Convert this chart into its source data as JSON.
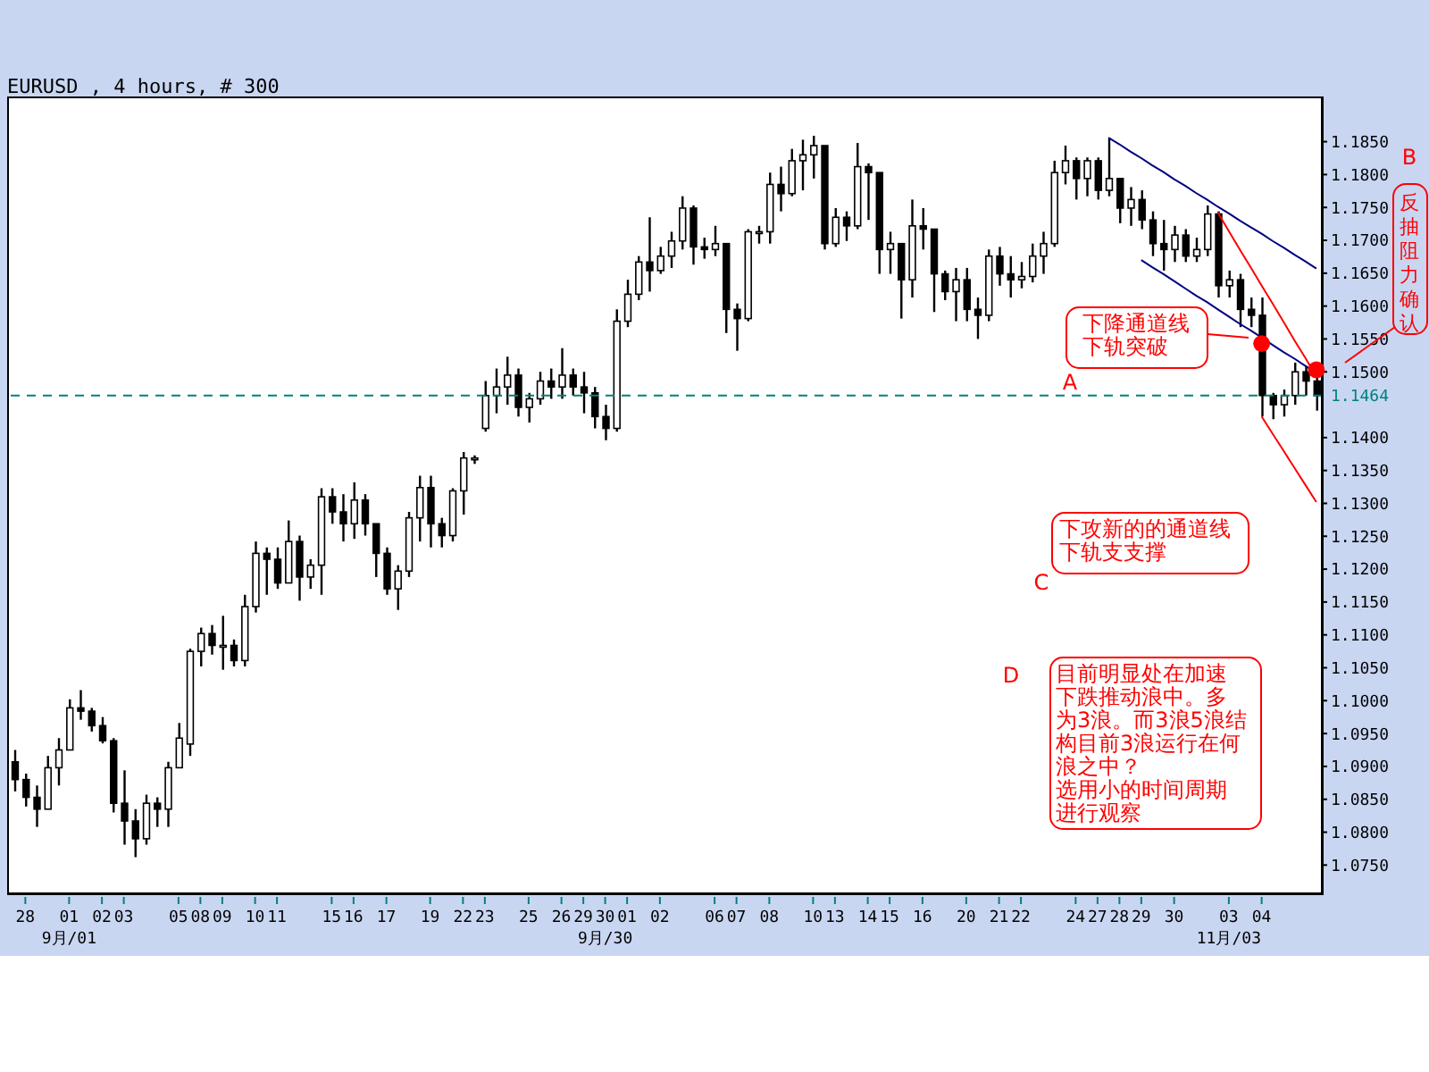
{
  "chart_data": {
    "type": "candlestick",
    "title": "EURUSD , 4 hours, # 300",
    "color": "#000000",
    "categories": [
      null,
      "28",
      null,
      null,
      null,
      "01\n9月/01",
      null,
      null,
      "02",
      null,
      "03",
      null,
      null,
      null,
      null,
      "05",
      null,
      "08",
      null,
      "09",
      null,
      null,
      "10",
      null,
      "11",
      null,
      null,
      null,
      null,
      "15",
      null,
      "16",
      null,
      null,
      "17",
      null,
      null,
      null,
      "19",
      null,
      null,
      "22",
      null,
      "23",
      null,
      null,
      null,
      "25",
      null,
      null,
      "26",
      null,
      "29",
      null,
      "30\n9月/30",
      null,
      "01",
      null,
      null,
      "02",
      null,
      null,
      null,
      null,
      "06",
      null,
      "07",
      null,
      null,
      "08",
      null,
      null,
      null,
      "10",
      null,
      "13",
      null,
      null,
      "14",
      null,
      "15",
      null,
      null,
      "16",
      null,
      null,
      null,
      "20",
      null,
      null,
      "21",
      null,
      "22",
      null,
      null,
      null,
      null,
      "24",
      null,
      "27",
      null,
      "28",
      null,
      "29",
      null,
      null,
      "30",
      null,
      null,
      null,
      null,
      "03\n11月/03",
      null,
      null,
      "04",
      null,
      null,
      null,
      null,
      null
    ],
    "ohlc": [
      [
        1.0907,
        1.0925,
        1.0862,
        1.088
      ],
      [
        1.088,
        1.0889,
        1.0839,
        1.0853
      ],
      [
        1.0853,
        1.0871,
        1.0808,
        1.0835
      ],
      [
        1.0835,
        1.0916,
        1.0835,
        1.0898
      ],
      [
        1.0898,
        1.0943,
        1.0871,
        1.0925
      ],
      [
        1.0925,
        1.1002,
        1.0925,
        1.0989
      ],
      [
        1.0989,
        1.1016,
        1.0971,
        1.0984
      ],
      [
        1.0984,
        1.0989,
        1.0953,
        1.0962
      ],
      [
        1.0962,
        1.0975,
        1.0935,
        1.0939
      ],
      [
        1.0939,
        1.0943,
        1.083,
        1.0844
      ],
      [
        1.0844,
        1.0894,
        1.0781,
        1.0817
      ],
      [
        1.0817,
        1.0835,
        1.0762,
        1.079
      ],
      [
        1.079,
        1.0857,
        1.0781,
        1.0844
      ],
      [
        1.0844,
        1.0853,
        1.0808,
        1.0835
      ],
      [
        1.0835,
        1.0907,
        1.0808,
        1.0898
      ],
      [
        1.0898,
        1.0966,
        1.0898,
        1.0943
      ],
      [
        1.0934,
        1.1079,
        1.0916,
        1.1075
      ],
      [
        1.1075,
        1.1111,
        1.1052,
        1.1102
      ],
      [
        1.1102,
        1.1115,
        1.107,
        1.1084
      ],
      [
        1.1084,
        1.1129,
        1.1047,
        1.1084
      ],
      [
        1.1084,
        1.1093,
        1.1052,
        1.1061
      ],
      [
        1.1061,
        1.1161,
        1.1052,
        1.1143
      ],
      [
        1.1143,
        1.1242,
        1.1134,
        1.1224
      ],
      [
        1.1224,
        1.1233,
        1.1161,
        1.1215
      ],
      [
        1.1215,
        1.1233,
        1.117,
        1.1179
      ],
      [
        1.1179,
        1.1274,
        1.1179,
        1.1242
      ],
      [
        1.1242,
        1.1251,
        1.1152,
        1.1188
      ],
      [
        1.1188,
        1.1215,
        1.117,
        1.1206
      ],
      [
        1.1206,
        1.1323,
        1.1161,
        1.131
      ],
      [
        1.131,
        1.1323,
        1.1269,
        1.1287
      ],
      [
        1.1287,
        1.1314,
        1.1242,
        1.1269
      ],
      [
        1.1269,
        1.1332,
        1.1246,
        1.1305
      ],
      [
        1.1305,
        1.1314,
        1.1251,
        1.1269
      ],
      [
        1.1269,
        1.1269,
        1.1188,
        1.1224
      ],
      [
        1.1224,
        1.1233,
        1.1161,
        1.117
      ],
      [
        1.117,
        1.1206,
        1.1138,
        1.1197
      ],
      [
        1.1197,
        1.1287,
        1.1188,
        1.1278
      ],
      [
        1.1278,
        1.1342,
        1.1242,
        1.1324
      ],
      [
        1.1324,
        1.1342,
        1.1233,
        1.1269
      ],
      [
        1.1269,
        1.1278,
        1.1233,
        1.1251
      ],
      [
        1.1251,
        1.1323,
        1.1242,
        1.1319
      ],
      [
        1.1319,
        1.1378,
        1.1283,
        1.1369
      ],
      [
        1.1369,
        1.1373,
        1.136,
        1.1369
      ],
      [
        1.1414,
        1.1486,
        1.1409,
        1.1464
      ],
      [
        1.1464,
        1.1505,
        1.1437,
        1.1477
      ],
      [
        1.1477,
        1.1523,
        1.145,
        1.1495
      ],
      [
        1.1495,
        1.1505,
        1.1432,
        1.1446
      ],
      [
        1.1446,
        1.1468,
        1.1423,
        1.1459
      ],
      [
        1.1459,
        1.15,
        1.145,
        1.1486
      ],
      [
        1.1486,
        1.1505,
        1.1459,
        1.1477
      ],
      [
        1.1477,
        1.1536,
        1.1459,
        1.1495
      ],
      [
        1.1495,
        1.1505,
        1.1464,
        1.1477
      ],
      [
        1.1477,
        1.15,
        1.1437,
        1.1468
      ],
      [
        1.1468,
        1.1477,
        1.1414,
        1.1432
      ],
      [
        1.1432,
        1.145,
        1.1396,
        1.1414
      ],
      [
        1.1414,
        1.1595,
        1.1409,
        1.1577
      ],
      [
        1.1577,
        1.164,
        1.1568,
        1.1618
      ],
      [
        1.1618,
        1.1676,
        1.1609,
        1.1667
      ],
      [
        1.1667,
        1.1735,
        1.1622,
        1.1654
      ],
      [
        1.1654,
        1.169,
        1.1649,
        1.1676
      ],
      [
        1.1676,
        1.1713,
        1.1658,
        1.1699
      ],
      [
        1.1699,
        1.1767,
        1.1686,
        1.1749
      ],
      [
        1.1749,
        1.1753,
        1.1663,
        1.169
      ],
      [
        1.169,
        1.1704,
        1.1672,
        1.1686
      ],
      [
        1.1686,
        1.1722,
        1.1676,
        1.1695
      ],
      [
        1.1695,
        1.1695,
        1.1559,
        1.1595
      ],
      [
        1.1595,
        1.1604,
        1.1532,
        1.1581
      ],
      [
        1.1581,
        1.1717,
        1.1577,
        1.1713
      ],
      [
        1.1713,
        1.1722,
        1.1695,
        1.1713
      ],
      [
        1.1713,
        1.1803,
        1.1695,
        1.1785
      ],
      [
        1.1785,
        1.1812,
        1.1744,
        1.1771
      ],
      [
        1.1771,
        1.1839,
        1.1767,
        1.1821
      ],
      [
        1.1821,
        1.1853,
        1.1776,
        1.183
      ],
      [
        1.183,
        1.1859,
        1.1794,
        1.1844
      ],
      [
        1.1844,
        1.1844,
        1.1686,
        1.1695
      ],
      [
        1.1695,
        1.1749,
        1.169,
        1.1735
      ],
      [
        1.1735,
        1.1744,
        1.1699,
        1.1722
      ],
      [
        1.1722,
        1.1848,
        1.1717,
        1.1812
      ],
      [
        1.1812,
        1.1817,
        1.1731,
        1.1803
      ],
      [
        1.1803,
        1.1803,
        1.1649,
        1.1686
      ],
      [
        1.1686,
        1.1713,
        1.1649,
        1.1695
      ],
      [
        1.1695,
        1.1695,
        1.1581,
        1.164
      ],
      [
        1.164,
        1.1762,
        1.1613,
        1.1722
      ],
      [
        1.1722,
        1.1749,
        1.1686,
        1.1717
      ],
      [
        1.1717,
        1.1717,
        1.1591,
        1.1649
      ],
      [
        1.1649,
        1.1654,
        1.1609,
        1.1622
      ],
      [
        1.1622,
        1.1658,
        1.1577,
        1.164
      ],
      [
        1.164,
        1.1658,
        1.1577,
        1.1595
      ],
      [
        1.1595,
        1.1613,
        1.155,
        1.1586
      ],
      [
        1.1586,
        1.1686,
        1.1577,
        1.1676
      ],
      [
        1.1676,
        1.169,
        1.1631,
        1.1649
      ],
      [
        1.1649,
        1.1676,
        1.1613,
        1.164
      ],
      [
        1.164,
        1.1667,
        1.1627,
        1.1645
      ],
      [
        1.1645,
        1.1695,
        1.1636,
        1.1676
      ],
      [
        1.1676,
        1.1713,
        1.1649,
        1.1695
      ],
      [
        1.1695,
        1.1821,
        1.169,
        1.1803
      ],
      [
        1.1803,
        1.1844,
        1.1785,
        1.1821
      ],
      [
        1.1821,
        1.1826,
        1.1762,
        1.1794
      ],
      [
        1.1794,
        1.1826,
        1.1767,
        1.1821
      ],
      [
        1.1821,
        1.1826,
        1.1762,
        1.1776
      ],
      [
        1.1776,
        1.1856,
        1.1767,
        1.1794
      ],
      [
        1.1794,
        1.1794,
        1.1726,
        1.1749
      ],
      [
        1.1749,
        1.1781,
        1.1722,
        1.1762
      ],
      [
        1.1762,
        1.1776,
        1.1717,
        1.1731
      ],
      [
        1.1731,
        1.1744,
        1.1676,
        1.1695
      ],
      [
        1.1695,
        1.1731,
        1.1654,
        1.1686
      ],
      [
        1.1686,
        1.1722,
        1.1667,
        1.1708
      ],
      [
        1.1708,
        1.1717,
        1.1667,
        1.1676
      ],
      [
        1.1676,
        1.1704,
        1.1667,
        1.1686
      ],
      [
        1.1686,
        1.1753,
        1.1676,
        1.174
      ],
      [
        1.174,
        1.1744,
        1.1613,
        1.1631
      ],
      [
        1.1631,
        1.1654,
        1.1613,
        1.164
      ],
      [
        1.164,
        1.1649,
        1.1568,
        1.1595
      ],
      [
        1.1595,
        1.1613,
        1.1568,
        1.1586
      ],
      [
        1.1586,
        1.1613,
        1.1432,
        1.1464
      ],
      [
        1.1464,
        1.1468,
        1.1428,
        1.145
      ],
      [
        1.145,
        1.1473,
        1.1432,
        1.1464
      ],
      [
        1.1464,
        1.1514,
        1.145,
        1.15
      ],
      [
        1.15,
        1.1509,
        1.1464,
        1.1486
      ],
      [
        1.1486,
        1.1495,
        1.1441,
        1.1464
      ]
    ],
    "series": [
      {
        "type": "line",
        "color": "#000080",
        "values": [
          null,
          null,
          null,
          null,
          null,
          null,
          null,
          null,
          null,
          null,
          null,
          null,
          null,
          null,
          null,
          null,
          null,
          null,
          null,
          null,
          null,
          null,
          null,
          null,
          null,
          null,
          null,
          null,
          null,
          null,
          null,
          null,
          null,
          null,
          null,
          null,
          null,
          null,
          null,
          null,
          null,
          null,
          null,
          null,
          null,
          null,
          null,
          null,
          null,
          null,
          null,
          null,
          null,
          null,
          null,
          null,
          null,
          null,
          null,
          null,
          null,
          null,
          null,
          null,
          null,
          null,
          null,
          null,
          null,
          null,
          null,
          null,
          null,
          null,
          null,
          null,
          null,
          null,
          null,
          null,
          null,
          null,
          null,
          null,
          null,
          null,
          null,
          null,
          null,
          null,
          null,
          null,
          null,
          null,
          null,
          null,
          null,
          null,
          null,
          null,
          1.1856,
          1.1846,
          1.1835,
          1.1825,
          1.1814,
          1.1804,
          1.1793,
          1.1783,
          1.1772,
          1.1762,
          1.1751,
          1.1741,
          1.173,
          1.172,
          1.171,
          1.1699,
          1.1689,
          1.1678,
          1.1668,
          1.1657
        ]
      },
      {
        "type": "line",
        "color": "#000080",
        "values": [
          null,
          null,
          null,
          null,
          null,
          null,
          null,
          null,
          null,
          null,
          null,
          null,
          null,
          null,
          null,
          null,
          null,
          null,
          null,
          null,
          null,
          null,
          null,
          null,
          null,
          null,
          null,
          null,
          null,
          null,
          null,
          null,
          null,
          null,
          null,
          null,
          null,
          null,
          null,
          null,
          null,
          null,
          null,
          null,
          null,
          null,
          null,
          null,
          null,
          null,
          null,
          null,
          null,
          null,
          null,
          null,
          null,
          null,
          null,
          null,
          null,
          null,
          null,
          null,
          null,
          null,
          null,
          null,
          null,
          null,
          null,
          null,
          null,
          null,
          null,
          null,
          null,
          null,
          null,
          null,
          null,
          null,
          null,
          null,
          null,
          null,
          null,
          null,
          null,
          null,
          null,
          null,
          null,
          null,
          null,
          null,
          null,
          null,
          null,
          null,
          null,
          null,
          null,
          1.167,
          1.1659,
          1.1649,
          1.1638,
          1.1627,
          1.1616,
          1.1606,
          1.1595,
          1.1584,
          1.1573,
          1.1563,
          1.1552,
          1.1541,
          1.153,
          1.152,
          1.1509,
          1.1498
        ]
      },
      {
        "type": "line",
        "color": "#ff0000",
        "values": [
          null,
          null,
          null,
          null,
          null,
          null,
          null,
          null,
          null,
          null,
          null,
          null,
          null,
          null,
          null,
          null,
          null,
          null,
          null,
          null,
          null,
          null,
          null,
          null,
          null,
          null,
          null,
          null,
          null,
          null,
          null,
          null,
          null,
          null,
          null,
          null,
          null,
          null,
          null,
          null,
          null,
          null,
          null,
          null,
          null,
          null,
          null,
          null,
          null,
          null,
          null,
          null,
          null,
          null,
          null,
          null,
          null,
          null,
          null,
          null,
          null,
          null,
          null,
          null,
          null,
          null,
          null,
          null,
          null,
          null,
          null,
          null,
          null,
          null,
          null,
          null,
          null,
          null,
          null,
          null,
          null,
          null,
          null,
          null,
          null,
          null,
          null,
          null,
          null,
          null,
          null,
          null,
          null,
          null,
          null,
          null,
          null,
          null,
          null,
          null,
          null,
          null,
          null,
          null,
          null,
          null,
          null,
          null,
          null,
          null,
          1.1742,
          1.1714,
          1.1686,
          1.1659,
          1.1631,
          1.1604,
          1.1576,
          1.1548,
          1.1521,
          1.1493
        ]
      },
      {
        "type": "line",
        "color": "#ff0000",
        "values": [
          null,
          null,
          null,
          null,
          null,
          null,
          null,
          null,
          null,
          null,
          null,
          null,
          null,
          null,
          null,
          null,
          null,
          null,
          null,
          null,
          null,
          null,
          null,
          null,
          null,
          null,
          null,
          null,
          null,
          null,
          null,
          null,
          null,
          null,
          null,
          null,
          null,
          null,
          null,
          null,
          null,
          null,
          null,
          null,
          null,
          null,
          null,
          null,
          null,
          null,
          null,
          null,
          null,
          null,
          null,
          null,
          null,
          null,
          null,
          null,
          null,
          null,
          null,
          null,
          null,
          null,
          null,
          null,
          null,
          null,
          null,
          null,
          null,
          null,
          null,
          null,
          null,
          null,
          null,
          null,
          null,
          null,
          null,
          null,
          null,
          null,
          null,
          null,
          null,
          null,
          null,
          null,
          null,
          null,
          null,
          null,
          null,
          null,
          null,
          null,
          null,
          null,
          null,
          null,
          null,
          null,
          null,
          null,
          null,
          null,
          null,
          null,
          null,
          null,
          1.1432,
          1.1406,
          1.138,
          1.1354,
          1.1328,
          1.1302
        ]
      },
      {
        "type": "scatter",
        "color": "#ff0000",
        "marker": "circle",
        "values": [
          null,
          null,
          null,
          null,
          null,
          null,
          null,
          null,
          null,
          null,
          null,
          null,
          null,
          null,
          null,
          null,
          null,
          null,
          null,
          null,
          null,
          null,
          null,
          null,
          null,
          null,
          null,
          null,
          null,
          null,
          null,
          null,
          null,
          null,
          null,
          null,
          null,
          null,
          null,
          null,
          null,
          null,
          null,
          null,
          null,
          null,
          null,
          null,
          null,
          null,
          null,
          null,
          null,
          null,
          null,
          null,
          null,
          null,
          null,
          null,
          null,
          null,
          null,
          null,
          null,
          null,
          null,
          null,
          null,
          null,
          null,
          null,
          null,
          null,
          null,
          null,
          null,
          null,
          null,
          null,
          null,
          null,
          null,
          null,
          null,
          null,
          null,
          null,
          null,
          null,
          null,
          null,
          null,
          null,
          null,
          null,
          null,
          null,
          null,
          null,
          null,
          null,
          null,
          null,
          null,
          null,
          null,
          null,
          null,
          null,
          null,
          null,
          null,
          null,
          1.1543,
          null,
          null,
          null,
          null,
          1.1503
        ]
      }
    ],
    "ylim": [
      1.0707,
      1.1916
    ],
    "yticks": [
      {
        "value": 1.075,
        "label": "1.0750"
      },
      {
        "value": 1.08,
        "label": "1.0800"
      },
      {
        "value": 1.085,
        "label": "1.0850"
      },
      {
        "value": 1.09,
        "label": "1.0900"
      },
      {
        "value": 1.095,
        "label": "1.0950"
      },
      {
        "value": 1.1,
        "label": "1.1000"
      },
      {
        "value": 1.105,
        "label": "1.1050"
      },
      {
        "value": 1.11,
        "label": "1.1100"
      },
      {
        "value": 1.115,
        "label": "1.1150"
      },
      {
        "value": 1.12,
        "label": "1.1200"
      },
      {
        "value": 1.125,
        "label": "1.1250"
      },
      {
        "value": 1.13,
        "label": "1.1300"
      },
      {
        "value": 1.135,
        "label": "1.1350"
      },
      {
        "value": 1.14,
        "label": "1.1400"
      },
      {
        "value": 1.15,
        "label": "1.1500"
      },
      {
        "value": 1.155,
        "label": "1.1550"
      },
      {
        "value": 1.16,
        "label": "1.1600"
      },
      {
        "value": 1.165,
        "label": "1.1650"
      },
      {
        "value": 1.17,
        "label": "1.1700"
      },
      {
        "value": 1.175,
        "label": "1.1750"
      },
      {
        "value": 1.18,
        "label": "1.1800"
      },
      {
        "value": 1.185,
        "label": "1.1850"
      }
    ],
    "ref_lines": [
      {
        "axis": "y",
        "value": 1.1464,
        "label": "1.1464",
        "color": "#008080",
        "line_style": "dashed"
      }
    ],
    "annotations": [
      "A",
      "B",
      "C",
      "D",
      "下降通道线下轨突破",
      "反抽阻力确认",
      "下攻新的的通道线下轨支支撑",
      "目前明显处在加速下跌推动浪中。多为3浪。而3浪5浪结构目前3浪运行在何浪之中？选用小的时间周期进行观察"
    ]
  }
}
